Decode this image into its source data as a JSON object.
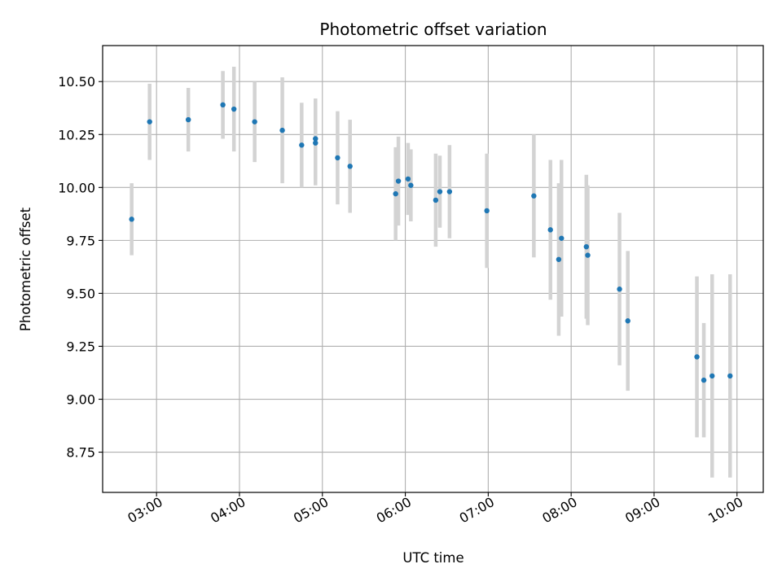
{
  "chart_data": {
    "type": "scatter",
    "title": "Photometric offset variation",
    "xlabel": "UTC time",
    "ylabel": "Photometric offset",
    "grid": true,
    "x_unit": "UTC time (HH:MM)",
    "xlim": [
      "02:21",
      "10:19"
    ],
    "ylim": [
      8.56,
      10.67
    ],
    "x_ticks": [
      "03:00",
      "04:00",
      "05:00",
      "06:00",
      "07:00",
      "08:00",
      "09:00",
      "10:00"
    ],
    "y_ticks": [
      "8.75",
      "9.00",
      "9.25",
      "9.50",
      "9.75",
      "10.00",
      "10.25",
      "10.50"
    ],
    "point_color": "#1f77b4",
    "errorbar_color": "#d3d3d3",
    "series": [
      {
        "points": [
          {
            "x": "02:42",
            "y": 9.85,
            "err": 0.17
          },
          {
            "x": "02:55",
            "y": 10.31,
            "err": 0.18
          },
          {
            "x": "03:23",
            "y": 10.32,
            "err": 0.15
          },
          {
            "x": "03:48",
            "y": 10.39,
            "err": 0.16
          },
          {
            "x": "03:56",
            "y": 10.37,
            "err": 0.2
          },
          {
            "x": "04:11",
            "y": 10.31,
            "err": 0.19
          },
          {
            "x": "04:31",
            "y": 10.27,
            "err": 0.25
          },
          {
            "x": "04:45",
            "y": 10.2,
            "err": 0.2
          },
          {
            "x": "04:55",
            "y": 10.21,
            "err": 0.2
          },
          {
            "x": "04:55",
            "y": 10.23,
            "err": 0.19
          },
          {
            "x": "05:11",
            "y": 10.14,
            "err": 0.22
          },
          {
            "x": "05:20",
            "y": 10.1,
            "err": 0.22
          },
          {
            "x": "05:53",
            "y": 9.97,
            "err": 0.22
          },
          {
            "x": "05:55",
            "y": 10.03,
            "err": 0.21
          },
          {
            "x": "06:02",
            "y": 10.04,
            "err": 0.17
          },
          {
            "x": "06:04",
            "y": 10.01,
            "err": 0.17
          },
          {
            "x": "06:22",
            "y": 9.94,
            "err": 0.22
          },
          {
            "x": "06:25",
            "y": 9.98,
            "err": 0.17
          },
          {
            "x": "06:32",
            "y": 9.98,
            "err": 0.22
          },
          {
            "x": "06:59",
            "y": 9.89,
            "err": 0.27
          },
          {
            "x": "07:33",
            "y": 9.96,
            "err": 0.29
          },
          {
            "x": "07:45",
            "y": 9.8,
            "err": 0.33
          },
          {
            "x": "07:51",
            "y": 9.66,
            "err": 0.36
          },
          {
            "x": "07:53",
            "y": 9.76,
            "err": 0.37
          },
          {
            "x": "08:11",
            "y": 9.72,
            "err": 0.34
          },
          {
            "x": "08:12",
            "y": 9.68,
            "err": 0.33
          },
          {
            "x": "08:35",
            "y": 9.52,
            "err": 0.36
          },
          {
            "x": "08:41",
            "y": 9.37,
            "err": 0.33
          },
          {
            "x": "09:31",
            "y": 9.2,
            "err": 0.38
          },
          {
            "x": "09:36",
            "y": 9.09,
            "err": 0.27
          },
          {
            "x": "09:42",
            "y": 9.11,
            "err": 0.48
          },
          {
            "x": "09:55",
            "y": 9.11,
            "err": 0.48
          }
        ]
      }
    ]
  }
}
